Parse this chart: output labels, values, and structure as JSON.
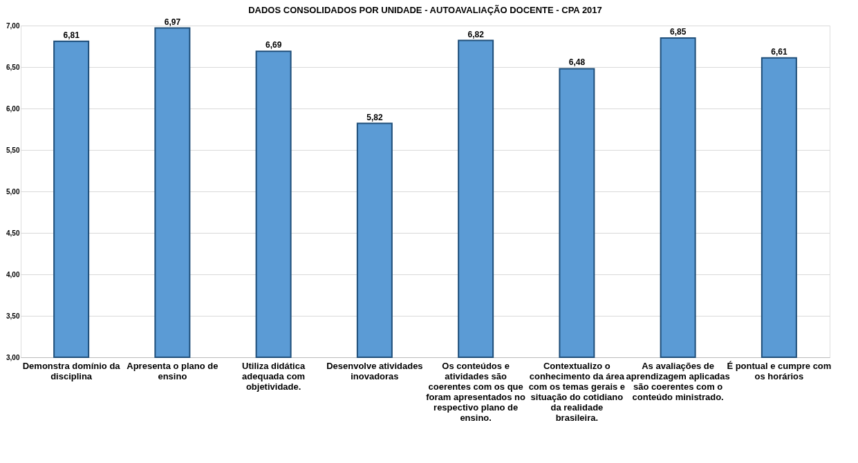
{
  "chart_data": {
    "type": "bar",
    "title": "DADOS CONSOLIDADOS POR UNIDADE - AUTOAVALIAÇÃO DOCENTE - CPA 2017",
    "categories": [
      "Demonstra domínio da disciplina",
      "Apresenta o plano de ensino",
      "Utiliza didática adequada com objetividade.",
      "Desenvolve atividades inovadoras",
      "Os conteúdos e atividades  são coerentes com os que foram apresentados no respectivo plano de ensino.",
      "Contextualizo o conhecimento da área com os temas gerais e situação do cotidiano da realidade brasileira.",
      "As avaliações de aprendizagem aplicadas são coerentes com o conteúdo ministrado.",
      "É pontual e cumpre com os horários"
    ],
    "values": [
      6.81,
      6.97,
      6.69,
      5.82,
      6.82,
      6.48,
      6.85,
      6.61
    ],
    "value_labels": [
      "6,81",
      "6,97",
      "6,69",
      "5,82",
      "6,82",
      "6,48",
      "6,85",
      "6,61"
    ],
    "color": "#5b9bd5",
    "ylim": [
      3,
      7
    ],
    "yticks": [
      {
        "value": 3,
        "label": "3,00"
      },
      {
        "value": 3.5,
        "label": "3,50"
      },
      {
        "value": 4,
        "label": "4,00"
      },
      {
        "value": 4.5,
        "label": "4,50"
      },
      {
        "value": 5,
        "label": "5,00"
      },
      {
        "value": 5.5,
        "label": "5,50"
      },
      {
        "value": 6,
        "label": "6,00"
      },
      {
        "value": 6.5,
        "label": "6,50"
      },
      {
        "value": 7,
        "label": "7,00"
      }
    ],
    "grid": "y"
  }
}
